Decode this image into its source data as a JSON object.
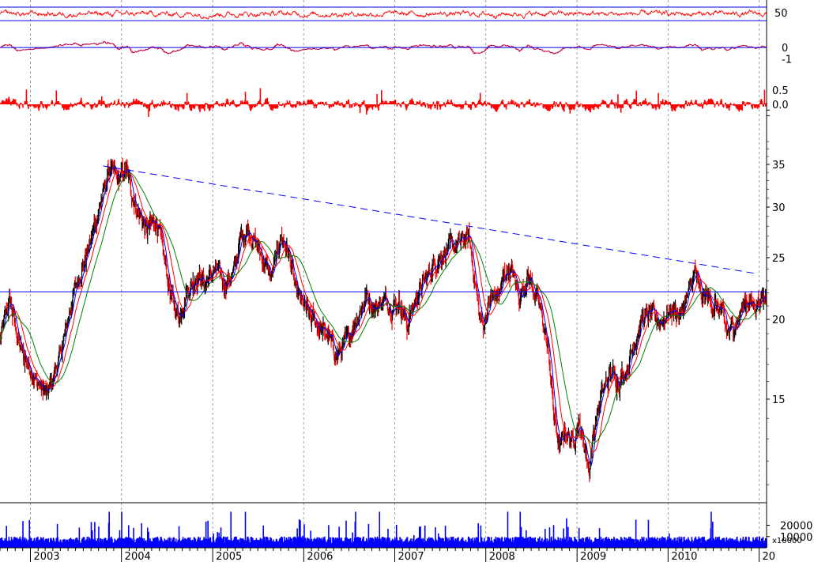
{
  "chart_data": {
    "type": "candlestick",
    "colors": {
      "background": "#ffffff",
      "up_candle": "#000000",
      "down_candle": "#ff0000",
      "ma_fast": "#0000ff",
      "ma_mid": "#ff0000",
      "ma_slow": "#008000",
      "reference_line": "#0000ff",
      "volume": "#0000ff",
      "indicator": "#ff0000",
      "grid": "#a0a0a0"
    },
    "x": {
      "type": "date",
      "range": [
        "2002-09-01",
        "2011-01-31"
      ],
      "year_labels": [
        "2003",
        "2004",
        "2005",
        "2006",
        "2007",
        "2008",
        "2009",
        "2010",
        "20"
      ],
      "year_starts": [
        "2003-01-01",
        "2004-01-01",
        "2005-01-01",
        "2006-01-01",
        "2007-01-01",
        "2008-01-01",
        "2009-01-01",
        "2010-01-01",
        "2011-01-01"
      ],
      "grid": true
    },
    "price": {
      "scale": "log",
      "ylim": [
        10.5,
        39
      ],
      "ticks": [
        15,
        20,
        25,
        30,
        35
      ],
      "tick_labels": [
        "15",
        "20",
        "25",
        "30",
        "35"
      ],
      "anchors": [
        [
          "2002-09-01",
          18.5
        ],
        [
          "2002-10-10",
          21.5
        ],
        [
          "2002-11-20",
          18.0
        ],
        [
          "2003-01-25",
          16.0
        ],
        [
          "2003-03-10",
          15.2
        ],
        [
          "2003-05-01",
          17.5
        ],
        [
          "2003-07-01",
          22.5
        ],
        [
          "2003-08-25",
          26.0
        ],
        [
          "2003-10-15",
          31.0
        ],
        [
          "2003-11-15",
          34.5
        ],
        [
          "2003-12-20",
          33.0
        ],
        [
          "2004-01-20",
          34.2
        ],
        [
          "2004-03-01",
          30.0
        ],
        [
          "2004-04-10",
          27.5
        ],
        [
          "2004-05-20",
          28.8
        ],
        [
          "2004-06-15",
          25.5
        ],
        [
          "2004-07-20",
          21.5
        ],
        [
          "2004-08-20",
          20.2
        ],
        [
          "2004-09-20",
          22.2
        ],
        [
          "2004-11-01",
          23.5
        ],
        [
          "2004-12-01",
          22.8
        ],
        [
          "2005-01-15",
          24.0
        ],
        [
          "2005-02-15",
          22.8
        ],
        [
          "2005-03-25",
          23.5
        ],
        [
          "2005-04-25",
          27.0
        ],
        [
          "2005-05-25",
          27.8
        ],
        [
          "2005-06-15",
          26.5
        ],
        [
          "2005-07-20",
          25.0
        ],
        [
          "2005-08-25",
          23.2
        ],
        [
          "2005-10-01",
          27.0
        ],
        [
          "2005-11-01",
          25.5
        ],
        [
          "2005-12-01",
          22.0
        ],
        [
          "2006-01-15",
          20.5
        ],
        [
          "2006-03-01",
          19.5
        ],
        [
          "2006-04-10",
          18.8
        ],
        [
          "2006-05-15",
          17.5
        ],
        [
          "2006-06-20",
          18.5
        ],
        [
          "2006-08-01",
          20.0
        ],
        [
          "2006-09-10",
          21.8
        ],
        [
          "2006-10-15",
          20.8
        ],
        [
          "2006-11-15",
          21.5
        ],
        [
          "2006-12-20",
          21.0
        ],
        [
          "2007-01-20",
          21.3
        ],
        [
          "2007-02-20",
          19.6
        ],
        [
          "2007-03-25",
          21.5
        ],
        [
          "2007-05-01",
          23.0
        ],
        [
          "2007-06-10",
          24.5
        ],
        [
          "2007-07-15",
          25.5
        ],
        [
          "2007-08-20",
          26.0
        ],
        [
          "2007-09-25",
          26.5
        ],
        [
          "2007-10-25",
          27.0
        ],
        [
          "2007-11-15",
          23.5
        ],
        [
          "2007-12-05",
          20.5
        ],
        [
          "2007-12-20",
          19.5
        ],
        [
          "2008-01-20",
          21.5
        ],
        [
          "2008-02-25",
          22.0
        ],
        [
          "2008-03-25",
          24.0
        ],
        [
          "2008-04-20",
          23.5
        ],
        [
          "2008-05-15",
          21.5
        ],
        [
          "2008-06-15",
          23.5
        ],
        [
          "2008-07-10",
          22.5
        ],
        [
          "2008-08-10",
          20.5
        ],
        [
          "2008-09-10",
          17.5
        ],
        [
          "2008-10-01",
          14.0
        ],
        [
          "2008-10-25",
          12.5
        ],
        [
          "2008-11-15",
          13.5
        ],
        [
          "2008-12-10",
          12.8
        ],
        [
          "2009-01-05",
          13.8
        ],
        [
          "2009-02-01",
          12.6
        ],
        [
          "2009-02-20",
          11.6
        ],
        [
          "2009-03-10",
          13.5
        ],
        [
          "2009-04-15",
          15.5
        ],
        [
          "2009-05-20",
          16.5
        ],
        [
          "2009-06-20",
          16.0
        ],
        [
          "2009-07-25",
          17.0
        ],
        [
          "2009-08-20",
          18.5
        ],
        [
          "2009-09-20",
          20.0
        ],
        [
          "2009-10-20",
          20.5
        ],
        [
          "2009-11-25",
          19.8
        ],
        [
          "2009-12-20",
          20.3
        ],
        [
          "2010-01-20",
          20.8
        ],
        [
          "2010-02-20",
          20.2
        ],
        [
          "2010-03-25",
          22.0
        ],
        [
          "2010-04-20",
          23.8
        ],
        [
          "2010-05-15",
          21.5
        ],
        [
          "2010-06-05",
          21.8
        ],
        [
          "2010-07-05",
          21.0
        ],
        [
          "2010-08-05",
          20.5
        ],
        [
          "2010-08-25",
          19.0
        ],
        [
          "2010-09-20",
          19.5
        ],
        [
          "2010-10-15",
          20.3
        ],
        [
          "2010-11-10",
          21.5
        ],
        [
          "2010-12-10",
          21.0
        ],
        [
          "2011-01-20",
          21.6
        ]
      ],
      "trendline": {
        "from": [
          "2003-10-20",
          34.8
        ],
        "to": [
          "2010-12-20",
          23.6
        ],
        "style": "dashed"
      },
      "horizontal_line": 22.1,
      "moving_averages": [
        {
          "color": "ma_fast",
          "period_days": 20
        },
        {
          "color": "ma_mid",
          "period_days": 50
        },
        {
          "color": "ma_slow",
          "period_days": 100
        }
      ]
    },
    "panels": [
      {
        "name": "",
        "ticks": [
          50
        ],
        "tick_labels": [
          "50"
        ],
        "reference_lines": [
          58,
          38
        ],
        "ylim": [
          30,
          65
        ],
        "style": "line"
      },
      {
        "name": "",
        "ticks": [
          0,
          -1
        ],
        "tick_labels": [
          "0",
          "-1"
        ],
        "reference_lines": [
          0
        ],
        "ylim": [
          -1.6,
          1.4
        ],
        "style": "double-line"
      },
      {
        "name": "",
        "ticks": [
          0.5,
          0.0
        ],
        "tick_labels": [
          "0.5",
          "0.0"
        ],
        "reference_lines": [],
        "ylim": [
          -0.5,
          1.0
        ],
        "style": "histogram"
      }
    ],
    "volume": {
      "ticks": [
        20000,
        10000
      ],
      "tick_labels": [
        "20000",
        "10000"
      ],
      "unit_label": "x10000",
      "ylim": [
        0,
        40000
      ]
    }
  }
}
